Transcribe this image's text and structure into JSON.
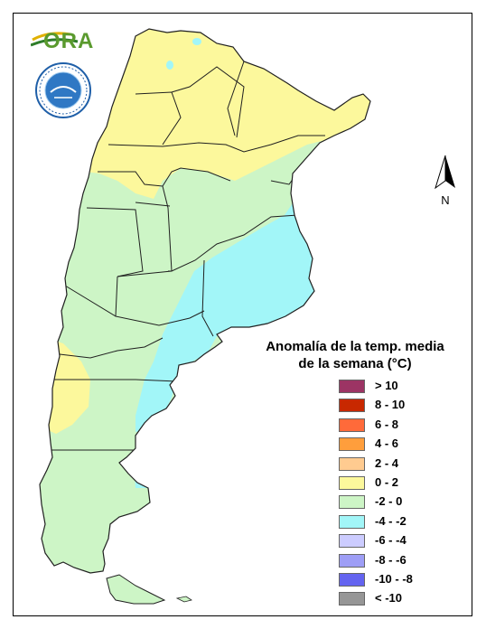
{
  "legend": {
    "title_line1": "Anomalía de la temp. media",
    "title_line2": "de la semana (°C)",
    "items": [
      {
        "label": "> 10",
        "color": "#9c3464"
      },
      {
        "label": "8 - 10",
        "color": "#c82800"
      },
      {
        "label": "6 - 8",
        "color": "#ff6a3a"
      },
      {
        "label": "4 - 6",
        "color": "#ff9e3c"
      },
      {
        "label": "2 - 4",
        "color": "#ffcb90"
      },
      {
        "label": "0 - 2",
        "color": "#fcf89c"
      },
      {
        "label": "-2 - 0",
        "color": "#cdf5c6"
      },
      {
        "label": "-4 - -2",
        "color": "#a2f6f8"
      },
      {
        "label": "-6 - -4",
        "color": "#ccccff"
      },
      {
        "label": "-8 - -6",
        "color": "#9e9ef6"
      },
      {
        "label": "-10 - -8",
        "color": "#6464f0"
      },
      {
        "label": "< -10",
        "color": "#969696"
      }
    ]
  },
  "north_label": "N",
  "logo": {
    "text": "ORA"
  },
  "map_colors": {
    "warm_0_2": "#fcf89c",
    "cool_m2_0": "#cdf5c6",
    "cold_m4_m2": "#a2f6f8",
    "border": "#202020"
  }
}
